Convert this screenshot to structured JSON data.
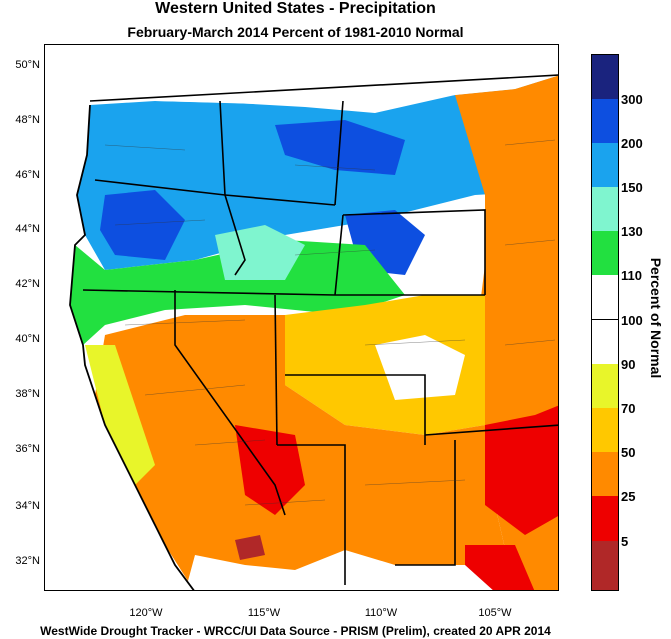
{
  "title": "Western United States - Precipitation",
  "subtitle": "February-March 2014  Percent of 1981-2010 Normal",
  "footer": "WestWide Drought Tracker - WRCC/UI  Data Source - PRISM (Prelim), created 20 APR 2014",
  "lat_labels": [
    "50°N",
    "48°N",
    "46°N",
    "44°N",
    "42°N",
    "40°N",
    "38°N",
    "36°N",
    "34°N",
    "32°N"
  ],
  "lon_labels": [
    "120°W",
    "115°W",
    "110°W",
    "105°W"
  ],
  "legend": {
    "title": "Percent of Normal",
    "ticks": [
      "300",
      "200",
      "150",
      "130",
      "110",
      "100",
      "90",
      "70",
      "50",
      "25",
      "5"
    ],
    "bins": [
      {
        "color": "#1a237e"
      },
      {
        "color": "#0d4fe0"
      },
      {
        "color": "#1aa3ee"
      },
      {
        "color": "#7ff5cf"
      },
      {
        "color": "#22e040"
      },
      {
        "color": "#ffffff"
      },
      {
        "color": "#ffffff"
      },
      {
        "color": "#e8f52a"
      },
      {
        "color": "#ffc800"
      },
      {
        "color": "#ff8a00"
      },
      {
        "color": "#ee0000"
      },
      {
        "color": "#b02828"
      }
    ]
  }
}
